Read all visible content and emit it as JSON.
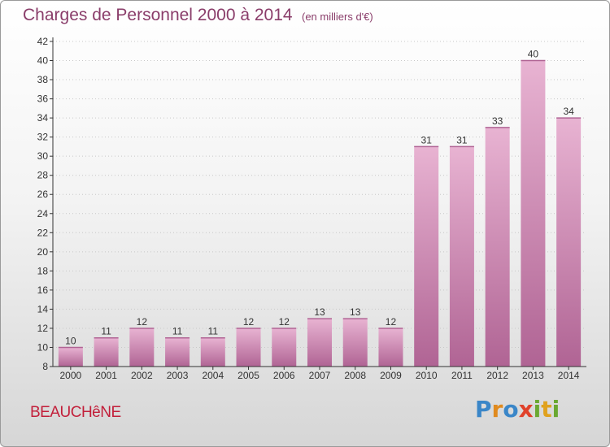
{
  "title": "Charges de Personnel 2000 à 2014",
  "subtitle": "(en milliers d'€)",
  "commune": "BEAUCHêNE",
  "logo": {
    "text": "Proxiti",
    "letters": [
      {
        "ch": "P",
        "color": "#3a86c8"
      },
      {
        "ch": "r",
        "color": "#e08a1e"
      },
      {
        "ch": "o",
        "color": "#3a86c8"
      },
      {
        "ch": "x",
        "color": "#e0412a"
      },
      {
        "ch": "i",
        "color": "#6aa832"
      },
      {
        "ch": "t",
        "color": "#e0a21e"
      },
      {
        "ch": "i",
        "color": "#6aa832"
      }
    ]
  },
  "colors": {
    "bar": "#d48fb9",
    "bar_dark": "#b06494",
    "bar_light": "#e8b3d2",
    "axis": "#333333",
    "grid": "#c8c8c8"
  },
  "chart_data": {
    "type": "bar",
    "title": "Charges de Personnel 2000 à 2014",
    "subtitle": "(en milliers d'€)",
    "categories": [
      "2000",
      "2001",
      "2002",
      "2003",
      "2004",
      "2005",
      "2006",
      "2007",
      "2008",
      "2009",
      "2010",
      "2011",
      "2012",
      "2013",
      "2014"
    ],
    "values": [
      10,
      11,
      12,
      11,
      11,
      12,
      12,
      13,
      13,
      12,
      31,
      31,
      33,
      40,
      34
    ],
    "ylim": [
      8,
      42
    ],
    "yticks": [
      8,
      10,
      12,
      14,
      16,
      18,
      20,
      22,
      24,
      26,
      28,
      30,
      32,
      34,
      36,
      38,
      40,
      42
    ],
    "grid": true
  }
}
